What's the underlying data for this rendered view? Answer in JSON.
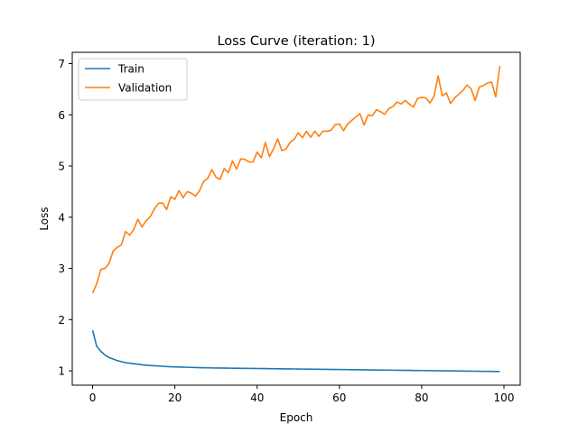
{
  "chart_data": {
    "type": "line",
    "title": "Loss Curve (iteration: 1)",
    "xlabel": "Epoch",
    "ylabel": "Loss",
    "xlim": [
      -4.95,
      103.95
    ],
    "ylim": [
      0.72,
      7.22
    ],
    "xticks": [
      0,
      20,
      40,
      60,
      80,
      100
    ],
    "yticks": [
      1,
      2,
      3,
      4,
      5,
      6,
      7
    ],
    "grid": false,
    "legend": "top-left",
    "series": [
      {
        "name": "Train",
        "color": "#1f77b4",
        "x": [
          0,
          1,
          2,
          3,
          4,
          5,
          6,
          7,
          8,
          9,
          10,
          11,
          12,
          13,
          14,
          15,
          16,
          17,
          18,
          19,
          20,
          21,
          22,
          23,
          24,
          25,
          26,
          27,
          28,
          29,
          30,
          31,
          32,
          33,
          34,
          35,
          36,
          37,
          38,
          39,
          40,
          41,
          42,
          43,
          44,
          45,
          46,
          47,
          48,
          49,
          50,
          51,
          52,
          53,
          54,
          55,
          56,
          57,
          58,
          59,
          60,
          61,
          62,
          63,
          64,
          65,
          66,
          67,
          68,
          69,
          70,
          71,
          72,
          73,
          74,
          75,
          76,
          77,
          78,
          79,
          80,
          81,
          82,
          83,
          84,
          85,
          86,
          87,
          88,
          89,
          90,
          91,
          92,
          93,
          94,
          95,
          96,
          97,
          98,
          99
        ],
        "values": [
          1.79,
          1.48,
          1.38,
          1.31,
          1.26,
          1.23,
          1.2,
          1.18,
          1.16,
          1.15,
          1.14,
          1.13,
          1.12,
          1.11,
          1.105,
          1.1,
          1.095,
          1.09,
          1.085,
          1.08,
          1.078,
          1.075,
          1.072,
          1.07,
          1.068,
          1.065,
          1.063,
          1.061,
          1.059,
          1.057,
          1.056,
          1.055,
          1.054,
          1.053,
          1.052,
          1.051,
          1.05,
          1.049,
          1.048,
          1.047,
          1.046,
          1.045,
          1.044,
          1.043,
          1.042,
          1.041,
          1.04,
          1.039,
          1.038,
          1.037,
          1.036,
          1.035,
          1.034,
          1.033,
          1.032,
          1.031,
          1.03,
          1.029,
          1.028,
          1.027,
          1.026,
          1.025,
          1.024,
          1.023,
          1.022,
          1.021,
          1.02,
          1.019,
          1.018,
          1.017,
          1.016,
          1.015,
          1.014,
          1.013,
          1.012,
          1.011,
          1.01,
          1.009,
          1.008,
          1.007,
          1.006,
          1.005,
          1.004,
          1.003,
          1.002,
          1.001,
          1.0,
          0.999,
          0.998,
          0.997,
          0.996,
          0.995,
          0.994,
          0.993,
          0.992,
          0.991,
          0.99,
          0.989,
          0.988,
          0.987
        ]
      },
      {
        "name": "Validation",
        "color": "#ff7f0e",
        "x": [
          0,
          1,
          2,
          3,
          4,
          5,
          6,
          7,
          8,
          9,
          10,
          11,
          12,
          13,
          14,
          15,
          16,
          17,
          18,
          19,
          20,
          21,
          22,
          23,
          24,
          25,
          26,
          27,
          28,
          29,
          30,
          31,
          32,
          33,
          34,
          35,
          36,
          37,
          38,
          39,
          40,
          41,
          42,
          43,
          44,
          45,
          46,
          47,
          48,
          49,
          50,
          51,
          52,
          53,
          54,
          55,
          56,
          57,
          58,
          59,
          60,
          61,
          62,
          63,
          64,
          65,
          66,
          67,
          68,
          69,
          70,
          71,
          72,
          73,
          74,
          75,
          76,
          77,
          78,
          79,
          80,
          81,
          82,
          83,
          84,
          85,
          86,
          87,
          88,
          89,
          90,
          91,
          92,
          93,
          94,
          95,
          96,
          97,
          98,
          99
        ],
        "values": [
          2.52,
          2.7,
          2.98,
          3.0,
          3.1,
          3.34,
          3.41,
          3.46,
          3.72,
          3.65,
          3.76,
          3.96,
          3.81,
          3.93,
          4.01,
          4.16,
          4.27,
          4.28,
          4.15,
          4.4,
          4.35,
          4.52,
          4.38,
          4.5,
          4.47,
          4.41,
          4.52,
          4.7,
          4.76,
          4.93,
          4.78,
          4.74,
          4.95,
          4.87,
          5.1,
          4.94,
          5.14,
          5.13,
          5.08,
          5.08,
          5.27,
          5.16,
          5.46,
          5.18,
          5.34,
          5.53,
          5.3,
          5.33,
          5.46,
          5.52,
          5.65,
          5.55,
          5.68,
          5.56,
          5.68,
          5.58,
          5.68,
          5.68,
          5.7,
          5.81,
          5.82,
          5.69,
          5.82,
          5.89,
          5.96,
          6.02,
          5.8,
          6.0,
          5.98,
          6.1,
          6.06,
          6.01,
          6.12,
          6.16,
          6.25,
          6.21,
          6.28,
          6.21,
          6.15,
          6.32,
          6.34,
          6.33,
          6.23,
          6.36,
          6.76,
          6.37,
          6.43,
          6.22,
          6.33,
          6.4,
          6.47,
          6.58,
          6.51,
          6.28,
          6.54,
          6.57,
          6.62,
          6.64,
          6.35,
          6.95
        ]
      }
    ]
  }
}
